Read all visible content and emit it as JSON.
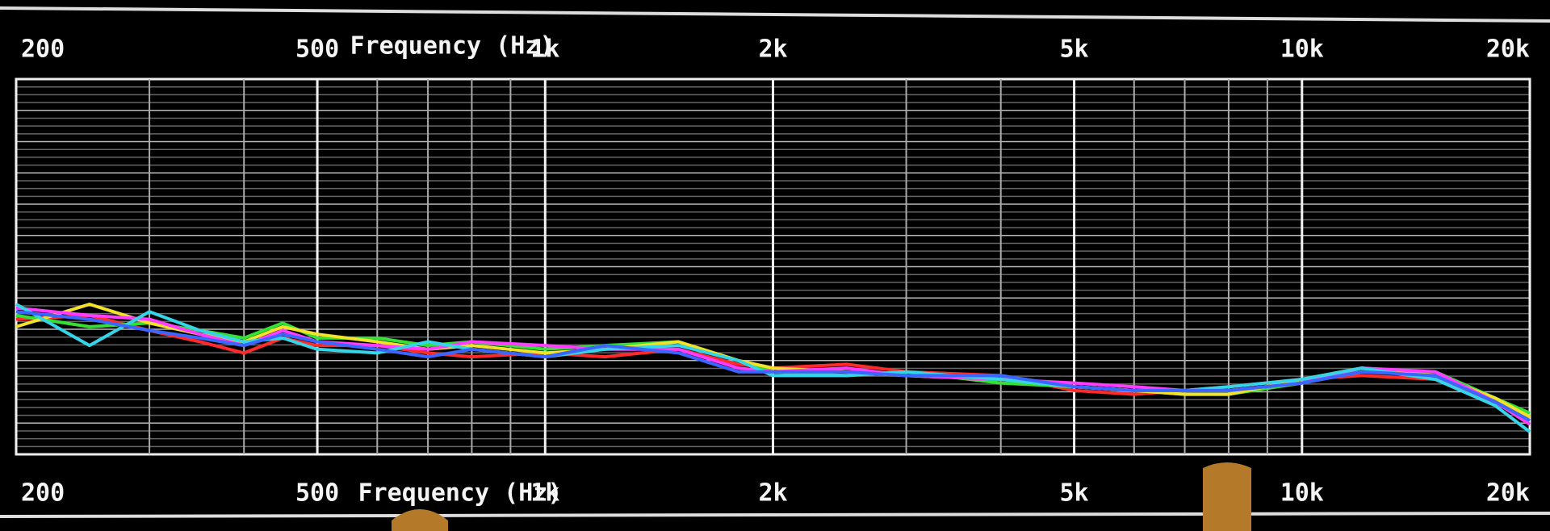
{
  "chart_data": {
    "type": "line",
    "x_label": "Frequency (Hz)",
    "x_log": true,
    "x": [
      200,
      250,
      300,
      350,
      400,
      450,
      500,
      600,
      700,
      800,
      1000,
      1200,
      1500,
      1800,
      2000,
      2500,
      3000,
      4000,
      5000,
      6000,
      7000,
      8000,
      10000,
      12000,
      15000,
      18000,
      20000
    ],
    "xlim": [
      200,
      20000
    ],
    "xticks": [
      200,
      500,
      {
        "value": 1000,
        "label": "1k"
      },
      {
        "value": 2000,
        "label": "2k"
      },
      {
        "value": 5000,
        "label": "5k"
      },
      {
        "value": 10000,
        "label": "10k"
      },
      {
        "value": 20000,
        "label": "20k"
      }
    ],
    "ylim": [
      0,
      100
    ],
    "grid": true,
    "series": [
      {
        "color": "#ff2a2a",
        "values": [
          36,
          37,
          33,
          30,
          27,
          31,
          29,
          29,
          27,
          26,
          27,
          26,
          28,
          24,
          23,
          24,
          22,
          21,
          17,
          16,
          17,
          18,
          20,
          21,
          20,
          14,
          10
        ]
      },
      {
        "color": "#35e035",
        "values": [
          37,
          34,
          35,
          33,
          31,
          35,
          31,
          31,
          29,
          30,
          28,
          29,
          30,
          25,
          22,
          21,
          22,
          19,
          18,
          17,
          16,
          16,
          19,
          22,
          22,
          15,
          11
        ]
      },
      {
        "color": "#f2e22a",
        "values": [
          34,
          40,
          35,
          32,
          30,
          34,
          32,
          30,
          28,
          29,
          27,
          28,
          30,
          25,
          23,
          22,
          21,
          20,
          18,
          17,
          16,
          16,
          20,
          23,
          21,
          15,
          10
        ]
      },
      {
        "color": "#ff3cff",
        "values": [
          39,
          37,
          36,
          32,
          29,
          33,
          30,
          29,
          28,
          30,
          29,
          28,
          28,
          23,
          22,
          23,
          21,
          20,
          19,
          18,
          17,
          17,
          19,
          23,
          22,
          14,
          8
        ]
      },
      {
        "color": "#35d4e6",
        "values": [
          40,
          29,
          38,
          33,
          30,
          31,
          28,
          27,
          30,
          28,
          26,
          28,
          29,
          25,
          21,
          21,
          22,
          20,
          18,
          17,
          17,
          18,
          20,
          23,
          20,
          13,
          6
        ]
      },
      {
        "color": "#3a66ff",
        "values": [
          38,
          36,
          33,
          31,
          29,
          32,
          30,
          28,
          26,
          28,
          26,
          29,
          27,
          22,
          22,
          22,
          21,
          21,
          18,
          17,
          17,
          17,
          19,
          22,
          21,
          14,
          9
        ]
      }
    ]
  }
}
